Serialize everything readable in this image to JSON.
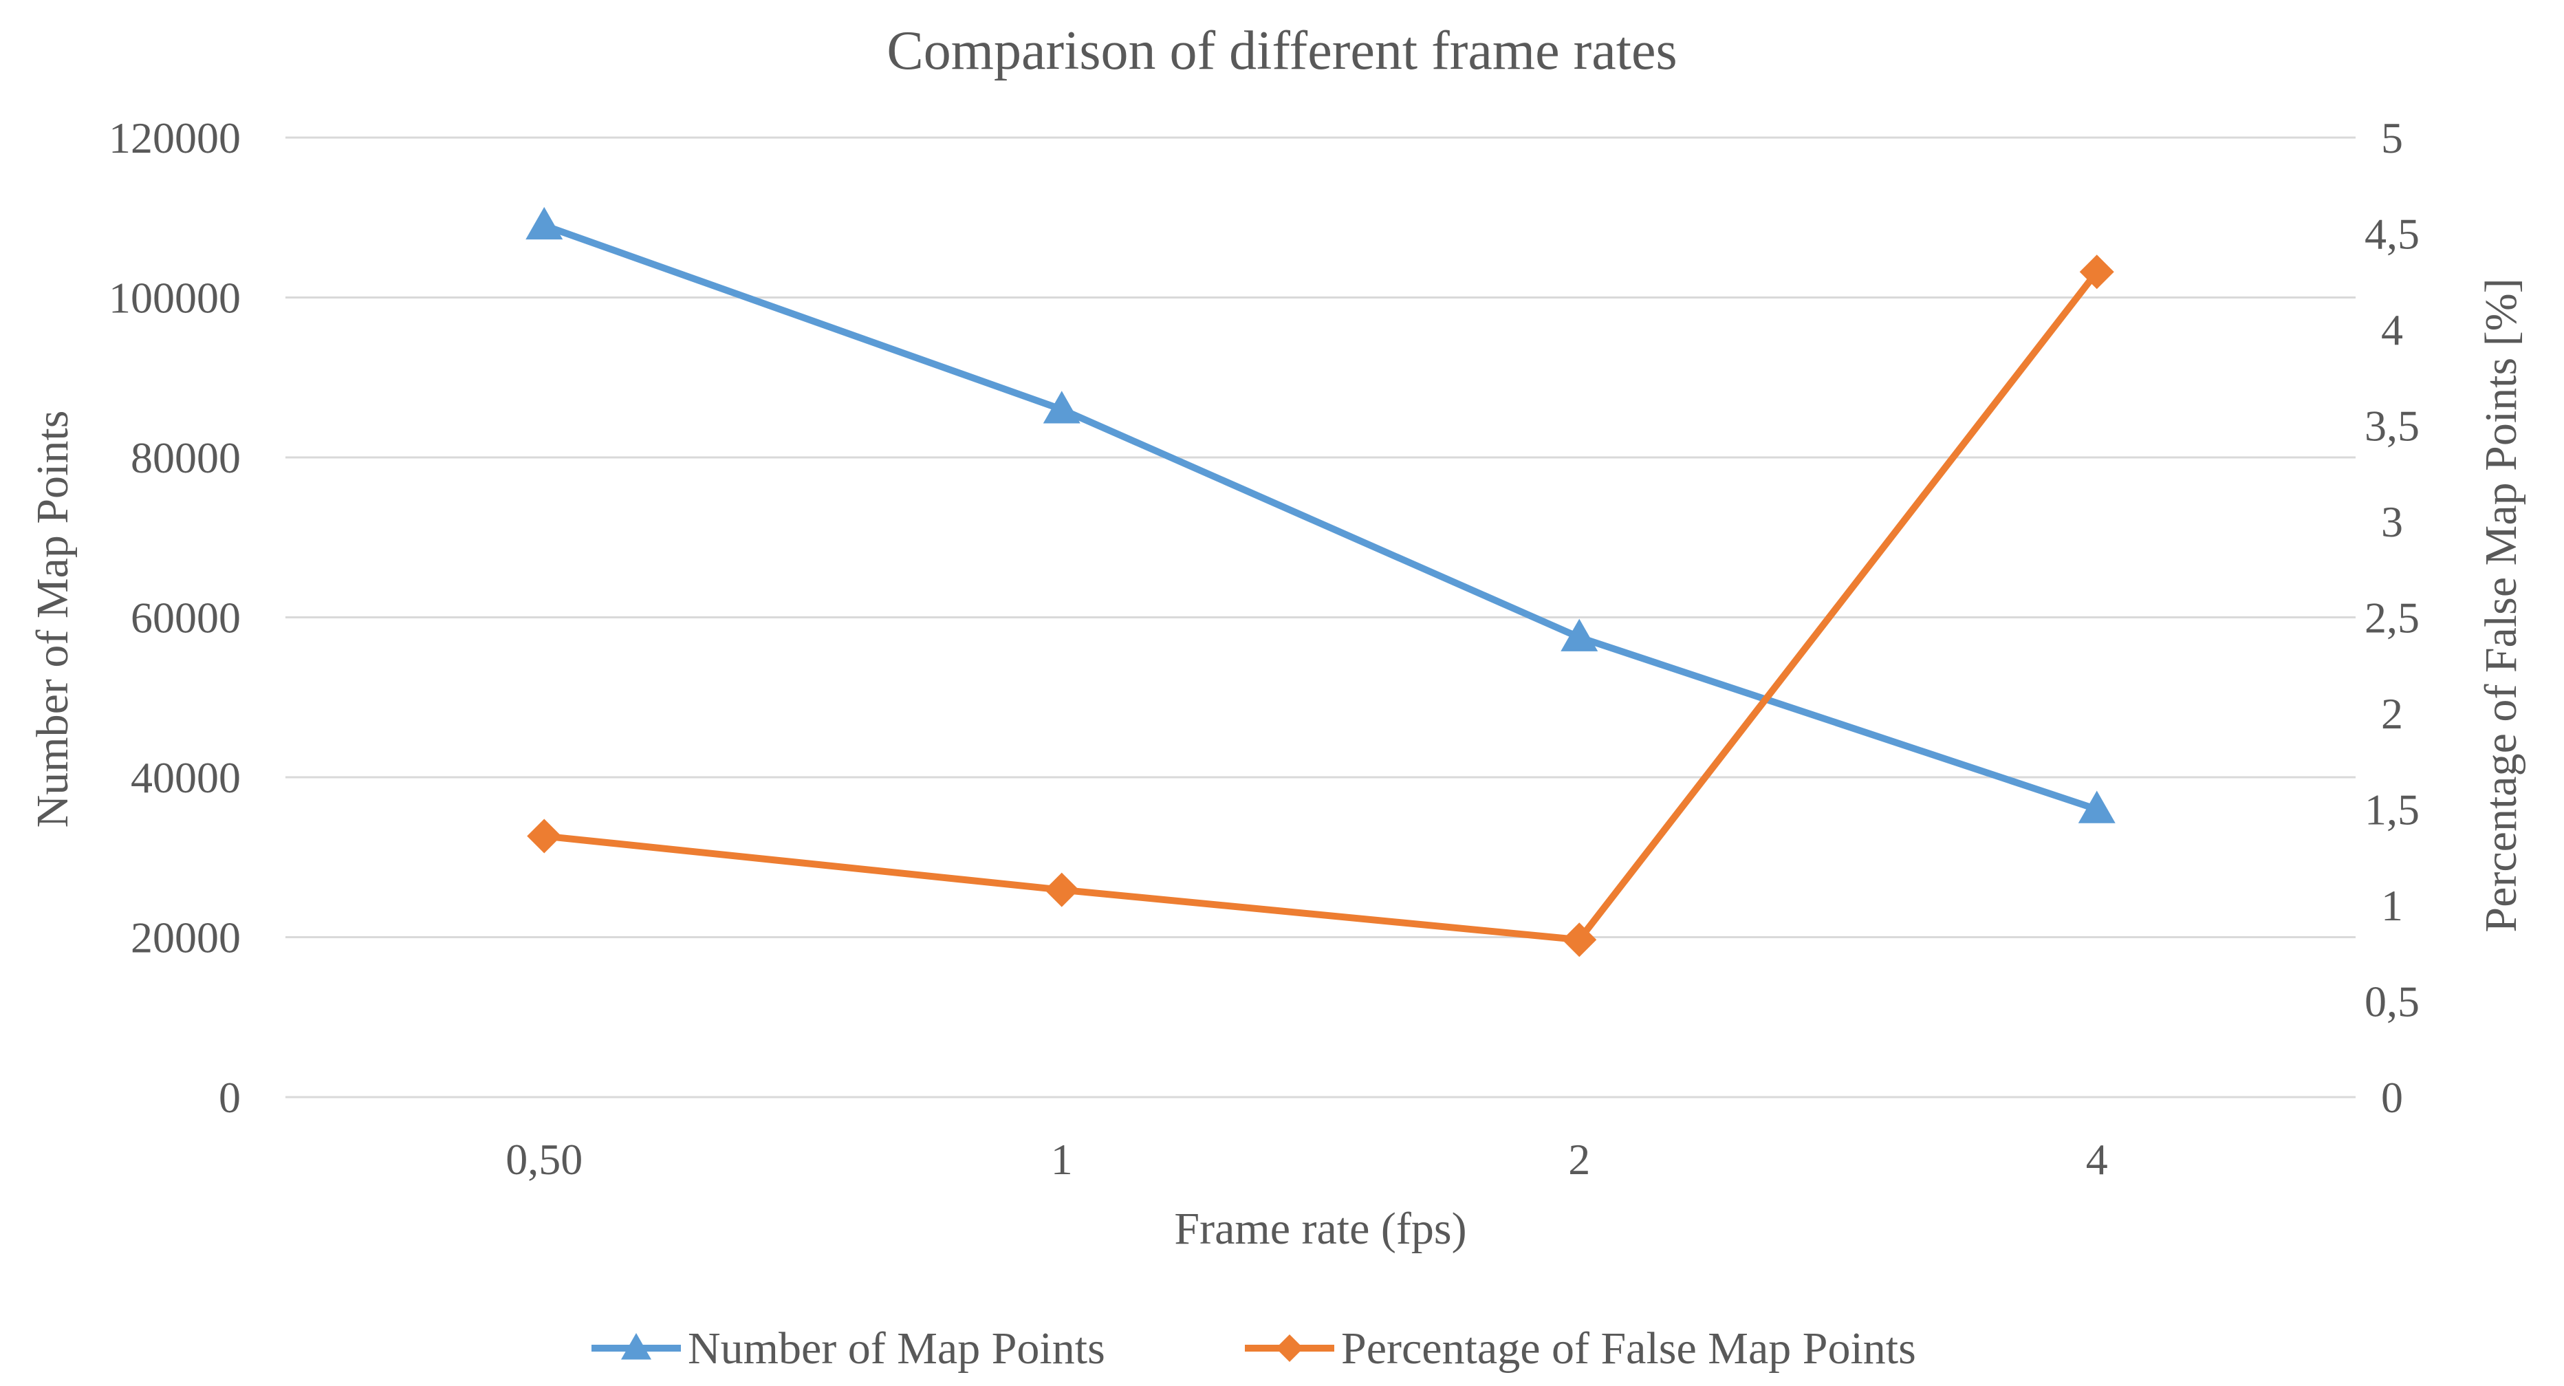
{
  "chart_data": {
    "type": "line",
    "title": "Comparison of different  frame rates",
    "xlabel": "Frame rate (fps)",
    "ylabel": "Number of Map Points",
    "y2label": "Percentage of False Map Points  [%]",
    "categories": [
      "0,50",
      "1",
      "2",
      "4"
    ],
    "ylim": [
      0,
      120000
    ],
    "y_ticks": [
      "0",
      "20000",
      "40000",
      "60000",
      "80000",
      "100000",
      "120000"
    ],
    "y2lim": [
      0,
      5
    ],
    "y2_ticks": [
      "0",
      "0,5",
      "1",
      "1,5",
      "2",
      "2,5",
      "3",
      "3,5",
      "4",
      "4,5",
      "5"
    ],
    "grid": true,
    "legend_position": "bottom",
    "series": [
      {
        "name": "Number of Map Points",
        "axis": "left",
        "marker": "triangle",
        "color": "#5B9BD5",
        "values": [
          109000,
          86000,
          57500,
          36000
        ]
      },
      {
        "name": "Percentage of False Map Points",
        "axis": "right",
        "marker": "diamond",
        "color": "#ED7D31",
        "values": [
          1.36,
          1.08,
          0.82,
          4.3
        ]
      }
    ]
  }
}
